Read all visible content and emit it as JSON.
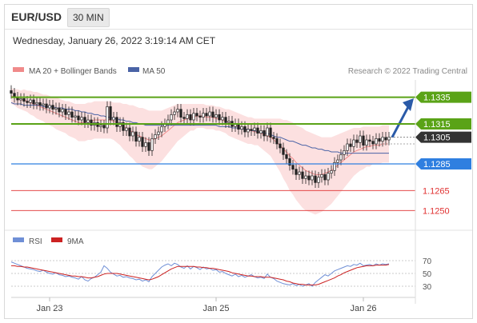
{
  "header": {
    "pair": "EUR/USD",
    "timeframe": "30 MIN",
    "datetime": "Wednesday, January 26, 2022 3:19:14 AM CET"
  },
  "legend": {
    "bb_label": "MA 20 + Bollinger Bands",
    "ma50_label": "MA 50",
    "bb_color": "#f08a8a",
    "ma50_color": "#4a63a6",
    "credit": "Research © 2022 Trading Central"
  },
  "rsi_legend": {
    "rsi_label": "RSI",
    "ma_label": "9MA",
    "rsi_color": "#6f8fd6",
    "ma_color": "#cc2222"
  },
  "chart_data": {
    "type": "candlestick",
    "ylim": [
      1.124,
      1.1345
    ],
    "x_ticks": [
      "Jan 23",
      "Jan 25",
      "Jan 26"
    ],
    "levels": [
      {
        "value": 1.1335,
        "label": "1.1335",
        "style": "green-tag",
        "color": "#5aa317"
      },
      {
        "value": 1.1315,
        "label": "1.1315",
        "style": "green-tag",
        "color": "#5aa317"
      },
      {
        "value": 1.1305,
        "label": "1.1305",
        "style": "current-price",
        "color": "#333333"
      },
      {
        "value": 1.1285,
        "label": "1.1285",
        "style": "blue-tag",
        "color": "#2f7fe0"
      },
      {
        "value": 1.1265,
        "label": "1.1265",
        "style": "red-text",
        "color": "#e03030"
      },
      {
        "value": 1.125,
        "label": "1.1250",
        "style": "red-text",
        "color": "#e03030"
      }
    ],
    "close": [
      1.1338,
      1.1335,
      1.1333,
      1.1334,
      1.1332,
      1.1331,
      1.1333,
      1.133,
      1.1331,
      1.1329,
      1.133,
      1.1327,
      1.1329,
      1.1326,
      1.1327,
      1.1324,
      1.1326,
      1.1322,
      1.1324,
      1.132,
      1.1321,
      1.1318,
      1.132,
      1.1316,
      1.1318,
      1.1314,
      1.1316,
      1.1313,
      1.1314,
      1.1312,
      1.1328,
      1.1318,
      1.132,
      1.1313,
      1.1316,
      1.131,
      1.1312,
      1.1306,
      1.1309,
      1.1302,
      1.1305,
      1.1298,
      1.1301,
      1.1295,
      1.1304,
      1.1307,
      1.1309,
      1.1313,
      1.1315,
      1.1318,
      1.1322,
      1.1324,
      1.1326,
      1.132,
      1.1319,
      1.1322,
      1.1318,
      1.1323,
      1.1321,
      1.132,
      1.1323,
      1.1321,
      1.1324,
      1.132,
      1.1322,
      1.1318,
      1.132,
      1.1316,
      1.1317,
      1.1313,
      1.1315,
      1.1311,
      1.1313,
      1.1309,
      1.1311,
      1.131,
      1.1312,
      1.1308,
      1.131,
      1.1306,
      1.1312,
      1.1305,
      1.1304,
      1.13,
      1.1297,
      1.1292,
      1.1289,
      1.1284,
      1.1281,
      1.1277,
      1.1279,
      1.1274,
      1.1276,
      1.1273,
      1.1276,
      1.1271,
      1.1275,
      1.1277,
      1.1273,
      1.1278,
      1.128,
      1.1286,
      1.1288,
      1.1292,
      1.1295,
      1.13,
      1.1298,
      1.1303,
      1.1301,
      1.1306,
      1.1299,
      1.1303,
      1.1302,
      1.13,
      1.1304,
      1.1302,
      1.1305,
      1.1303,
      1.1305
    ],
    "ma20": [
      1.1336,
      1.1335,
      1.1334,
      1.1333,
      1.1333,
      1.1332,
      1.1331,
      1.133,
      1.1329,
      1.1328,
      1.1327,
      1.1326,
      1.1325,
      1.1324,
      1.1323,
      1.1322,
      1.1321,
      1.132,
      1.1319,
      1.1318,
      1.1317,
      1.1316,
      1.1316,
      1.1316,
      1.1317,
      1.1317,
      1.1318,
      1.1318,
      1.1318,
      1.1318,
      1.1318,
      1.1318,
      1.1317,
      1.1316,
      1.1315,
      1.1313,
      1.1312,
      1.131,
      1.1309,
      1.1307,
      1.1306,
      1.1305,
      1.1304,
      1.1303,
      1.1303,
      1.1304,
      1.1305,
      1.1306,
      1.1308,
      1.131,
      1.1312,
      1.1314,
      1.1316,
      1.1317,
      1.1318,
      1.1319,
      1.132,
      1.132,
      1.1321,
      1.1321,
      1.1321,
      1.132,
      1.132,
      1.132,
      1.1319,
      1.1319,
      1.1318,
      1.1317,
      1.1316,
      1.1315,
      1.1314,
      1.1313,
      1.1312,
      1.1311,
      1.131,
      1.131,
      1.1309,
      1.1309,
      1.1308,
      1.1307,
      1.1306,
      1.1305,
      1.1303,
      1.1301,
      1.1299,
      1.1296,
      1.1294,
      1.1291,
      1.1289,
      1.1286,
      1.1284,
      1.1282,
      1.128,
      1.1279,
      1.1278,
      1.1277,
      1.1277,
      1.1277,
      1.1278,
      1.1279,
      1.128,
      1.1282,
      1.1284,
      1.1286,
      1.1288,
      1.129,
      1.1292,
      1.1294,
      1.1295,
      1.1296,
      1.1297,
      1.1298,
      1.1298,
      1.1299,
      1.1299,
      1.1299,
      1.13,
      1.13,
      1.13
    ],
    "ma50": [
      1.1331,
      1.133,
      1.133,
      1.133,
      1.1329,
      1.1329,
      1.1329,
      1.1329,
      1.1329,
      1.1329,
      1.1328,
      1.1328,
      1.1328,
      1.1328,
      1.1327,
      1.1327,
      1.1327,
      1.1326,
      1.1326,
      1.1326,
      1.1325,
      1.1325,
      1.1324,
      1.1324,
      1.1323,
      1.1323,
      1.1322,
      1.1322,
      1.1321,
      1.1321,
      1.132,
      1.132,
      1.1319,
      1.1319,
      1.1318,
      1.1318,
      1.1317,
      1.1317,
      1.1316,
      1.1316,
      1.1315,
      1.1315,
      1.1314,
      1.1314,
      1.1314,
      1.1314,
      1.1314,
      1.1314,
      1.1314,
      1.1314,
      1.1314,
      1.1314,
      1.1314,
      1.1314,
      1.1314,
      1.1314,
      1.1314,
      1.1314,
      1.1314,
      1.1314,
      1.1314,
      1.1314,
      1.1314,
      1.1314,
      1.1314,
      1.1313,
      1.1313,
      1.1313,
      1.1313,
      1.1312,
      1.1312,
      1.1312,
      1.1311,
      1.1311,
      1.1311,
      1.131,
      1.131,
      1.1309,
      1.1309,
      1.1308,
      1.1308,
      1.1307,
      1.1306,
      1.1305,
      1.1305,
      1.1304,
      1.1303,
      1.1302,
      1.1302,
      1.1301,
      1.13,
      1.1299,
      1.1299,
      1.1298,
      1.1297,
      1.1297,
      1.1296,
      1.1296,
      1.1295,
      1.1295,
      1.1294,
      1.1294,
      1.1294,
      1.1293,
      1.1293,
      1.1293,
      1.1293,
      1.1293,
      1.1293,
      1.1293,
      1.1293,
      1.1293,
      1.1293,
      1.1293,
      1.1293,
      1.1293,
      1.1293,
      1.1293,
      1.1293
    ],
    "band_width": [
      0.0006,
      0.0006,
      0.0007,
      0.0007,
      0.0008,
      0.0008,
      0.0009,
      0.0009,
      0.001,
      0.001,
      0.001,
      0.0011,
      0.0011,
      0.0011,
      0.0012,
      0.0012,
      0.0012,
      0.0012,
      0.0013,
      0.0013,
      0.0013,
      0.0014,
      0.0014,
      0.0014,
      0.0014,
      0.0014,
      0.0014,
      0.0014,
      0.0014,
      0.0014,
      0.0014,
      0.0014,
      0.0014,
      0.0015,
      0.0016,
      0.0017,
      0.0018,
      0.0019,
      0.002,
      0.0021,
      0.0021,
      0.0022,
      0.0022,
      0.0022,
      0.0022,
      0.0021,
      0.002,
      0.0019,
      0.0018,
      0.0017,
      0.0016,
      0.0015,
      0.0014,
      0.0013,
      0.0012,
      0.0011,
      0.001,
      0.001,
      0.0009,
      0.0009,
      0.0009,
      0.0009,
      0.0009,
      0.0009,
      0.0009,
      0.0009,
      0.0009,
      0.0009,
      0.001,
      0.001,
      0.001,
      0.001,
      0.001,
      0.001,
      0.001,
      0.001,
      0.001,
      0.001,
      0.0011,
      0.0012,
      0.0013,
      0.0014,
      0.0016,
      0.0018,
      0.002,
      0.0022,
      0.0024,
      0.0026,
      0.0027,
      0.0028,
      0.0029,
      0.003,
      0.003,
      0.003,
      0.003,
      0.003,
      0.0029,
      0.0028,
      0.0027,
      0.0026,
      0.0025,
      0.0024,
      0.0023,
      0.0022,
      0.0021,
      0.002,
      0.0019,
      0.0018,
      0.0017,
      0.0016,
      0.0016,
      0.0015,
      0.0015,
      0.0014,
      0.0014,
      0.0014,
      0.0014,
      0.0014,
      0.0014,
      0.0014,
      0.0014
    ],
    "projection": {
      "from_value": 1.1305,
      "to_value": 1.133
    },
    "rsi": {
      "ylim": [
        20,
        80
      ],
      "y_ticks": [
        70,
        50,
        30
      ],
      "rsi": [
        68,
        66,
        64,
        62,
        60,
        58,
        57,
        56,
        54,
        53,
        55,
        52,
        50,
        49,
        51,
        48,
        47,
        45,
        46,
        44,
        43,
        41,
        45,
        40,
        38,
        42,
        44,
        48,
        52,
        62,
        58,
        52,
        49,
        46,
        47,
        44,
        45,
        43,
        42,
        40,
        41,
        38,
        40,
        37,
        45,
        50,
        55,
        60,
        63,
        65,
        62,
        66,
        64,
        60,
        58,
        62,
        57,
        61,
        59,
        56,
        60,
        57,
        58,
        55,
        56,
        52,
        53,
        50,
        48,
        46,
        49,
        45,
        47,
        44,
        46,
        48,
        45,
        43,
        44,
        42,
        49,
        44,
        42,
        38,
        36,
        34,
        33,
        32,
        34,
        31,
        33,
        30,
        32,
        34,
        30,
        36,
        40,
        44,
        48,
        46,
        50,
        54,
        56,
        58,
        60,
        62,
        61,
        64,
        63,
        66,
        62,
        63,
        64,
        62,
        65,
        63,
        65,
        64,
        65
      ],
      "ma9": [
        62,
        62,
        61,
        61,
        60,
        60,
        59,
        58,
        57,
        56,
        55,
        54,
        53,
        52,
        51,
        50,
        49,
        48,
        47,
        46,
        46,
        45,
        45,
        44,
        43,
        43,
        44,
        45,
        47,
        49,
        50,
        50,
        50,
        50,
        49,
        48,
        47,
        46,
        45,
        44,
        43,
        42,
        41,
        40,
        41,
        43,
        45,
        48,
        51,
        54,
        57,
        59,
        61,
        61,
        61,
        61,
        61,
        61,
        60,
        60,
        59,
        59,
        58,
        58,
        57,
        56,
        55,
        54,
        53,
        51,
        50,
        49,
        48,
        47,
        46,
        46,
        45,
        45,
        45,
        44,
        44,
        44,
        43,
        42,
        41,
        40,
        38,
        37,
        35,
        34,
        33,
        33,
        32,
        32,
        32,
        32,
        33,
        35,
        37,
        39,
        41,
        43,
        46,
        48,
        51,
        53,
        55,
        57,
        59,
        60,
        61,
        62,
        62,
        62,
        63,
        63,
        63,
        63,
        64
      ]
    }
  }
}
